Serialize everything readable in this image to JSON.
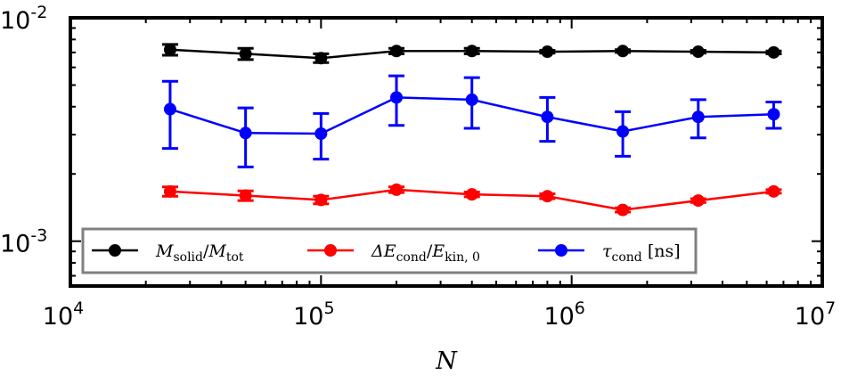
{
  "chart_data": {
    "type": "line",
    "xscale": "log",
    "yscale": "log",
    "xlim": [
      10000,
      10000000
    ],
    "ylim": [
      0.00063,
      0.01
    ],
    "xlabel": "N",
    "x_ticks": [
      {
        "value": 10000,
        "base": "10",
        "exp": "4"
      },
      {
        "value": 100000,
        "base": "10",
        "exp": "5"
      },
      {
        "value": 1000000,
        "base": "10",
        "exp": "6"
      },
      {
        "value": 10000000,
        "base": "10",
        "exp": "7"
      }
    ],
    "y_ticks": [
      {
        "value": 0.001,
        "base": "10",
        "exp": "-3"
      },
      {
        "value": 0.01,
        "base": "10",
        "exp": "-2"
      }
    ],
    "x": [
      25000,
      50000,
      100000,
      200000,
      400000,
      800000,
      1600000,
      3200000,
      6400000
    ],
    "series": [
      {
        "name": "M_solid/M_tot",
        "color": "#000000",
        "values": [
          0.0072,
          0.0069,
          0.0066,
          0.0071,
          0.0071,
          0.00705,
          0.0071,
          0.00705,
          0.007
        ],
        "errors": [
          0.0004,
          0.0004,
          0.0003,
          0.0002,
          0.0002,
          0.0001,
          0.0001,
          0.0001,
          0.0001
        ]
      },
      {
        "name": "ΔE_cond/E_kin,0",
        "color": "#ff0000",
        "values": [
          0.00167,
          0.0016,
          0.00153,
          0.0017,
          0.00162,
          0.00159,
          0.00138,
          0.00152,
          0.00167
        ],
        "errors": [
          8e-05,
          8e-05,
          6e-05,
          5e-05,
          4e-05,
          4e-05,
          3e-05,
          3e-05,
          3e-05
        ]
      },
      {
        "name": "τ_cond [ns]",
        "color": "#0000ff",
        "values": [
          0.0039,
          0.00305,
          0.00303,
          0.0044,
          0.0043,
          0.0036,
          0.0031,
          0.0036,
          0.0037
        ],
        "errors": [
          0.0013,
          0.0009,
          0.0007,
          0.0011,
          0.0011,
          0.0008,
          0.0007,
          0.0007,
          0.0005
        ]
      }
    ],
    "legend": {
      "position": "lower-left",
      "entries": [
        {
          "main": "M",
          "sub": "solid",
          "slash": "/",
          "main2": "M",
          "sub2": "tot"
        },
        {
          "main": "ΔE",
          "sub": "cond",
          "slash": "/",
          "main2": "E",
          "sub2": "kin, 0"
        },
        {
          "main": "τ",
          "sub": "cond",
          "slash": " ",
          "main2": "[ns]",
          "sub2": ""
        }
      ]
    }
  }
}
